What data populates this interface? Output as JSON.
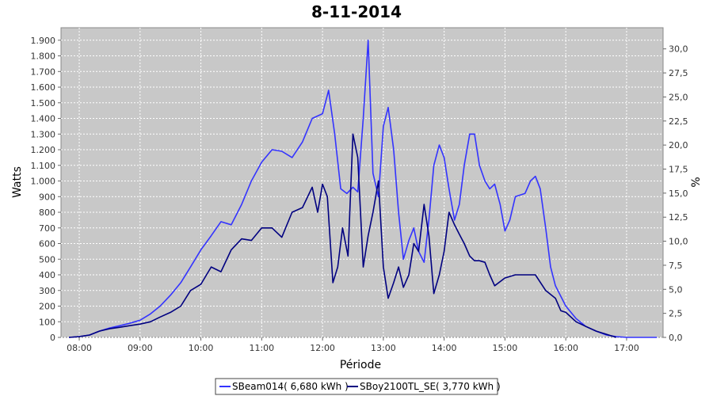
{
  "chart_data": {
    "type": "line",
    "title": "8-11-2014",
    "xlabel": "Période",
    "ylabel": "Watts",
    "y2label": "%",
    "xlim": [
      7.7,
      17.6
    ],
    "ylim": [
      0,
      1980
    ],
    "y2lim": [
      0,
      32.2
    ],
    "x_ticks": [
      8,
      9,
      10,
      11,
      12,
      13,
      14,
      15,
      16,
      17
    ],
    "x_tick_labels": [
      "08:00",
      "09:00",
      "10:00",
      "11:00",
      "12:00",
      "13:00",
      "14:00",
      "15:00",
      "16:00",
      "17:00"
    ],
    "y_ticks": [
      0,
      100,
      200,
      300,
      400,
      500,
      600,
      700,
      800,
      900,
      1000,
      1100,
      1200,
      1300,
      1400,
      1500,
      1600,
      1700,
      1800,
      1900
    ],
    "y_tick_labels": [
      "0",
      "100",
      "200",
      "300",
      "400",
      "500",
      "600",
      "700",
      "800",
      "900",
      "1.000",
      "1.100",
      "1.200",
      "1.300",
      "1.400",
      "1.500",
      "1.600",
      "1.700",
      "1.800",
      "1.900"
    ],
    "y2_ticks": [
      0,
      2.5,
      5,
      7.5,
      10,
      12.5,
      15,
      17.5,
      20,
      22.5,
      25,
      27.5,
      30
    ],
    "y2_tick_labels": [
      "0,0",
      "2,5",
      "5,0",
      "7,5",
      "10,0",
      "12,5",
      "15,0",
      "17,5",
      "20,0",
      "22,5",
      "25,0",
      "27,5",
      "30,0"
    ],
    "grid": true,
    "legend_position": "bottom-center",
    "plot_background": "#c8c8c8",
    "series": [
      {
        "name": "SBeam014( 6,680 kWh )",
        "color": "#3333ff",
        "x": [
          7.83,
          8.0,
          8.17,
          8.33,
          8.5,
          8.67,
          8.83,
          9.0,
          9.17,
          9.33,
          9.5,
          9.67,
          9.83,
          10.0,
          10.17,
          10.33,
          10.5,
          10.67,
          10.83,
          11.0,
          11.17,
          11.33,
          11.5,
          11.67,
          11.83,
          12.0,
          12.1,
          12.2,
          12.3,
          12.4,
          12.5,
          12.58,
          12.67,
          12.75,
          12.83,
          12.92,
          13.0,
          13.08,
          13.17,
          13.25,
          13.33,
          13.42,
          13.5,
          13.58,
          13.67,
          13.75,
          13.83,
          13.92,
          14.0,
          14.08,
          14.17,
          14.25,
          14.33,
          14.42,
          14.5,
          14.58,
          14.67,
          14.75,
          14.83,
          14.92,
          15.0,
          15.08,
          15.17,
          15.25,
          15.33,
          15.42,
          15.5,
          15.58,
          15.67,
          15.75,
          15.83,
          16.0,
          16.17,
          16.33,
          16.5,
          16.67,
          16.83,
          17.0,
          17.17,
          17.5
        ],
        "values": [
          0,
          5,
          15,
          40,
          60,
          75,
          90,
          110,
          150,
          200,
          270,
          350,
          450,
          560,
          650,
          740,
          720,
          850,
          1000,
          1120,
          1200,
          1190,
          1150,
          1250,
          1400,
          1430,
          1580,
          1300,
          950,
          920,
          960,
          930,
          1400,
          1900,
          1050,
          900,
          1350,
          1470,
          1200,
          800,
          500,
          620,
          700,
          550,
          480,
          750,
          1100,
          1230,
          1150,
          950,
          750,
          850,
          1100,
          1300,
          1300,
          1100,
          1000,
          950,
          980,
          850,
          680,
          750,
          900,
          910,
          920,
          1000,
          1030,
          950,
          700,
          450,
          330,
          200,
          120,
          70,
          40,
          15,
          5,
          0,
          0,
          0
        ]
      },
      {
        "name": "SBoy2100TL_SE( 3,770 kWh )",
        "color": "#000080",
        "x": [
          7.83,
          8.0,
          8.17,
          8.33,
          8.5,
          8.67,
          8.83,
          9.0,
          9.17,
          9.33,
          9.5,
          9.67,
          9.83,
          10.0,
          10.17,
          10.33,
          10.5,
          10.67,
          10.83,
          11.0,
          11.17,
          11.33,
          11.5,
          11.67,
          11.83,
          11.92,
          12.0,
          12.08,
          12.17,
          12.25,
          12.33,
          12.42,
          12.5,
          12.58,
          12.67,
          12.75,
          12.83,
          12.92,
          13.0,
          13.08,
          13.17,
          13.25,
          13.33,
          13.42,
          13.5,
          13.58,
          13.67,
          13.75,
          13.83,
          13.92,
          14.0,
          14.08,
          14.17,
          14.25,
          14.33,
          14.42,
          14.5,
          14.58,
          14.67,
          14.75,
          14.83,
          15.0,
          15.17,
          15.33,
          15.5,
          15.67,
          15.83,
          15.92,
          16.0,
          16.17,
          16.33,
          16.5,
          16.67,
          16.83
        ],
        "values": [
          0,
          5,
          15,
          40,
          55,
          65,
          75,
          85,
          100,
          130,
          160,
          200,
          300,
          340,
          450,
          420,
          560,
          630,
          620,
          700,
          700,
          640,
          800,
          830,
          960,
          800,
          980,
          900,
          350,
          450,
          700,
          520,
          1300,
          1150,
          450,
          650,
          800,
          1000,
          450,
          250,
          350,
          450,
          320,
          400,
          600,
          550,
          850,
          650,
          280,
          400,
          550,
          800,
          720,
          660,
          600,
          520,
          490,
          490,
          480,
          400,
          330,
          380,
          400,
          400,
          400,
          300,
          250,
          170,
          160,
          100,
          70,
          40,
          20,
          0
        ]
      }
    ]
  }
}
